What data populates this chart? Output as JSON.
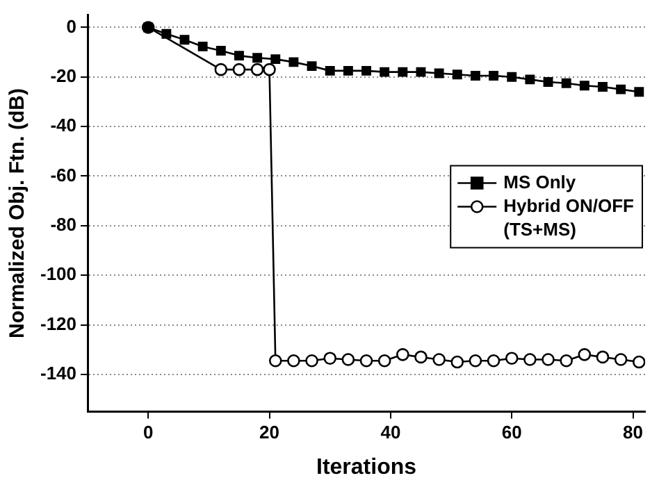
{
  "chart_data": {
    "type": "line",
    "xlabel": "Iterations",
    "ylabel": "Normalized Obj. Ftn. (dB)",
    "xlim": [
      -10,
      82
    ],
    "xticks": [
      0,
      20,
      40,
      60,
      80
    ],
    "ylim": [
      -155,
      5
    ],
    "yticks": [
      -140,
      -120,
      -100,
      -80,
      -60,
      -40,
      -20,
      0
    ],
    "grid": "y",
    "legend": "right",
    "line_style": "solid",
    "series": [
      {
        "name": "MS Only",
        "color": "#000000",
        "marker": "square",
        "x": [
          0,
          3,
          6,
          9,
          12,
          15,
          18,
          21,
          24,
          27,
          30,
          33,
          36,
          39,
          42,
          45,
          48,
          51,
          54,
          57,
          60,
          63,
          66,
          69,
          72,
          75,
          78,
          81
        ],
        "values": [
          0,
          -2.6,
          -5,
          -7.7,
          -9.4,
          -11.4,
          -12.3,
          -12.8,
          -14,
          -15.6,
          -17.5,
          -17.5,
          -17.5,
          -18,
          -18,
          -18,
          -18.5,
          -19,
          -19.5,
          -19.5,
          -20,
          -21,
          -22,
          -22.5,
          -23.5,
          -24,
          -25,
          -26
        ]
      },
      {
        "name": "Hybrid ON/OFF\n(TS+MS)",
        "color": "#000000",
        "marker": "circle",
        "x": [
          0,
          3,
          6,
          9,
          12,
          15,
          18,
          20,
          21,
          24,
          27,
          30,
          33,
          36,
          39,
          42,
          45,
          48,
          51,
          54,
          57,
          60,
          63,
          66,
          69,
          72,
          75,
          78,
          81
        ],
        "values": [
          0,
          null,
          null,
          null,
          -17,
          -17,
          -17,
          -17,
          -134.5,
          -134.5,
          -134.5,
          -133.5,
          -134,
          -134.5,
          -134.5,
          -132,
          -133,
          -134,
          -135,
          -134.5,
          -134.5,
          -133.5,
          -134,
          -134,
          -134.5,
          -132,
          -133,
          -134,
          -135
        ]
      }
    ]
  }
}
